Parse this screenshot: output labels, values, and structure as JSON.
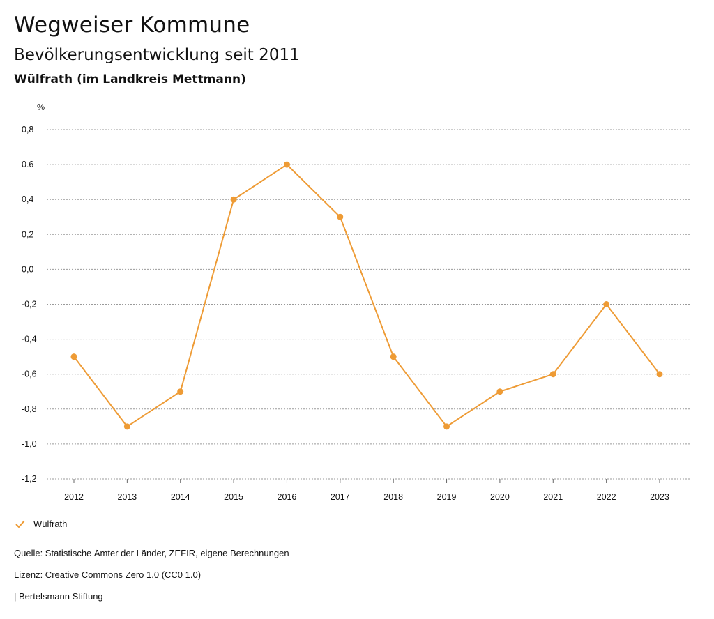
{
  "header": {
    "title": "Wegweiser Kommune",
    "subtitle": "Bevölkerungsentwicklung seit 2011",
    "region": "Wülfrath (im Landkreis Mettmann)"
  },
  "chart_data": {
    "type": "line",
    "ylabel": "%",
    "categories": [
      "2012",
      "2013",
      "2014",
      "2015",
      "2016",
      "2017",
      "2018",
      "2019",
      "2020",
      "2021",
      "2022",
      "2023"
    ],
    "series": [
      {
        "name": "Wülfrath",
        "values": [
          -0.5,
          -0.9,
          -0.7,
          0.4,
          0.6,
          0.3,
          -0.5,
          -0.9,
          -0.7,
          -0.6,
          -0.2,
          -0.6
        ]
      }
    ],
    "ylim": [
      -1.2,
      0.8
    ],
    "yticks": [
      0.8,
      0.6,
      0.4,
      0.2,
      0.0,
      -0.2,
      -0.4,
      -0.6,
      -0.8,
      -1.0,
      -1.2
    ],
    "ytick_labels": [
      "0,8",
      "0.6",
      "0,4",
      "0,2",
      "0,0",
      "-0,2",
      "-0,4",
      "-0,6",
      "-0,8",
      "-1,0",
      "-1,2"
    ],
    "grid": true,
    "color": "#ee9b35"
  },
  "legend": {
    "label": "Wülfrath"
  },
  "footer": {
    "source": "Quelle: Statistische Ämter der Länder, ZEFIR, eigene Berechnungen",
    "license": "Lizenz: Creative Commons Zero 1.0 (CC0 1.0)",
    "publisher": "| Bertelsmann Stiftung"
  }
}
